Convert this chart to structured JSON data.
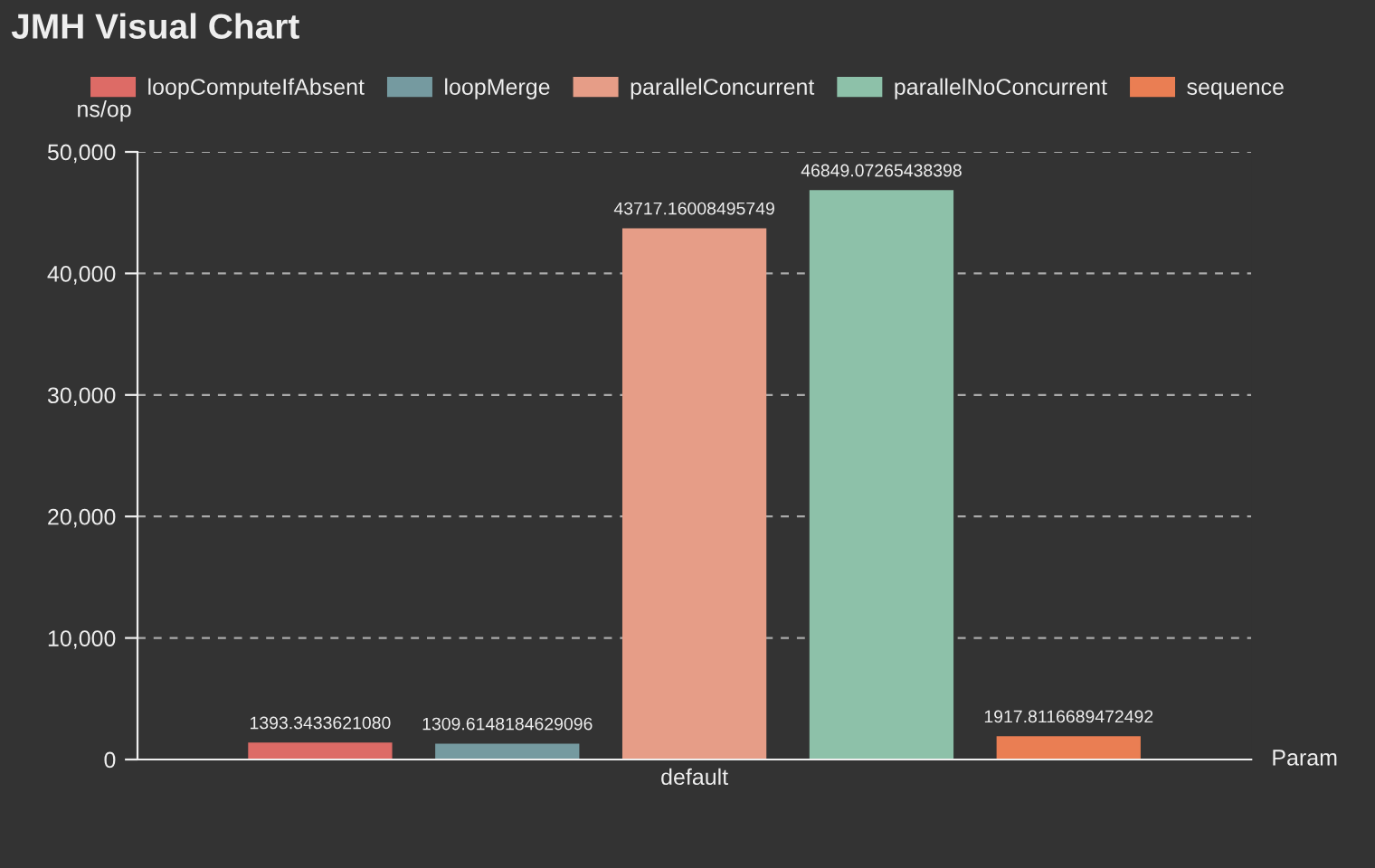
{
  "chart_data": {
    "type": "bar",
    "title": "JMH Visual Chart",
    "xlabel": "Param",
    "ylabel": "ns/op",
    "categories": [
      "default"
    ],
    "series": [
      {
        "name": "loopComputeIfAbsent",
        "color": "#dd6b66",
        "values": [
          1393.343362108
        ],
        "value_labels": [
          "1393.3433621080"
        ]
      },
      {
        "name": "loopMerge",
        "color": "#759aa0",
        "values": [
          1309.6148184629096
        ],
        "value_labels": [
          "1309.6148184629096"
        ]
      },
      {
        "name": "parallelConcurrent",
        "color": "#e69d87",
        "values": [
          43717.16008495749
        ],
        "value_labels": [
          "43717.16008495749"
        ]
      },
      {
        "name": "parallelNoConcurrent",
        "color": "#8dc1a9",
        "values": [
          46849.07265438398
        ],
        "value_labels": [
          "46849.07265438398"
        ]
      },
      {
        "name": "sequence",
        "color": "#ea7e53",
        "values": [
          1917.8116689472492
        ],
        "value_labels": [
          "1917.8116689472492"
        ]
      }
    ],
    "ylim": [
      0,
      50000
    ],
    "yticks": [
      0,
      {
        "value": 10000,
        "label": "10,000"
      },
      {
        "value": 20000,
        "label": "20,000"
      },
      {
        "value": 30000,
        "label": "30,000"
      },
      {
        "value": 40000,
        "label": "40,000"
      },
      {
        "value": 50000,
        "label": "50,000"
      }
    ],
    "grid": "y",
    "legend": "top"
  }
}
